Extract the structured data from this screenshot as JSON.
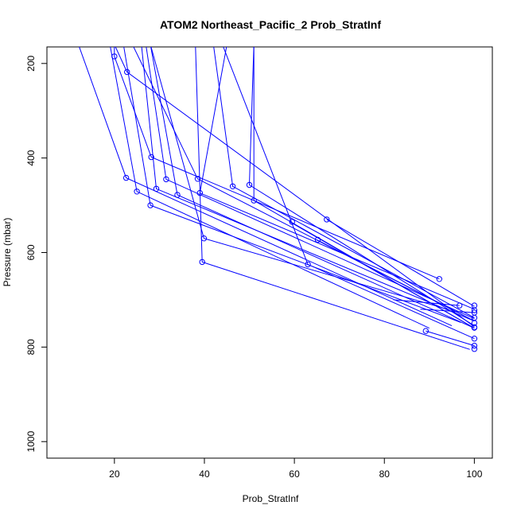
{
  "chart_data": {
    "type": "line",
    "title": "ATOM2 Northeast_Pacific_2 Prob_StratInf",
    "xlabel": "Prob_StratInf",
    "ylabel": "Pressure (mbar)",
    "xlim": [
      5,
      104
    ],
    "ylim": [
      1035,
      165
    ],
    "y_reversed": true,
    "xticks": [
      20,
      40,
      60,
      80,
      100
    ],
    "yticks": [
      200,
      400,
      600,
      800,
      1000
    ],
    "grid": false,
    "legend": "none",
    "colors": {
      "series": "#0000ff",
      "axes": "#000000"
    },
    "series": [
      {
        "segments": [
          [
            [
              12,
              160
            ],
            [
              22.6,
              442
            ],
            [
              95,
              755
            ]
          ]
        ],
        "points": [
          [
            22.6,
            442
          ],
          [
            100,
            759
          ]
        ]
      },
      {
        "segments": [
          [
            [
              19,
              160
            ],
            [
              25,
              471
            ],
            [
              90,
              760
            ]
          ]
        ],
        "points": [
          [
            25,
            471
          ]
        ]
      },
      {
        "segments": [
          [
            [
              22,
              160
            ],
            [
              28,
              500
            ],
            [
              97,
              748
            ]
          ]
        ],
        "points": [
          [
            28,
            500
          ],
          [
            100,
            749
          ]
        ]
      },
      {
        "segments": [
          [
            [
              26,
              160
            ],
            [
              29.3,
              465
            ],
            [
              100,
              745
            ]
          ]
        ],
        "points": [
          [
            29.3,
            465
          ]
        ]
      },
      {
        "segments": [
          [
            [
              27,
              160
            ],
            [
              31.5,
              445
            ],
            [
              100,
              740
            ]
          ]
        ],
        "points": [
          [
            31.5,
            445
          ],
          [
            100,
            738
          ]
        ]
      },
      {
        "segments": [
          [
            [
              28,
              160
            ],
            [
              34,
              478
            ],
            [
              100,
              760
            ]
          ]
        ],
        "points": [
          [
            34,
            478
          ],
          [
            100,
            758
          ]
        ]
      },
      {
        "segments": [
          [
            [
              38,
              160
            ],
            [
              39.5,
              620
            ],
            [
              99,
              805
            ]
          ]
        ],
        "points": [
          [
            39.5,
            620
          ],
          [
            100,
            804
          ]
        ]
      },
      {
        "segments": [
          [
            [
              28,
              160
            ],
            [
              39.9,
              570
            ],
            [
              94,
              720
            ]
          ]
        ],
        "points": [
          [
            39.9,
            570
          ]
        ]
      },
      {
        "segments": [
          [
            [
              24,
              160
            ],
            [
              38.5,
              444
            ],
            [
              100,
              745
            ]
          ]
        ],
        "points": [
          [
            38.5,
            444
          ]
        ]
      },
      {
        "segments": [
          [
            [
              45,
              160
            ],
            [
              39,
              474
            ],
            [
              100,
              720
            ]
          ]
        ],
        "points": [
          [
            39,
            474
          ],
          [
            100,
            722
          ]
        ]
      },
      {
        "segments": [
          [
            [
              42,
              160
            ],
            [
              46.3,
              460
            ],
            [
              100,
              738
            ]
          ]
        ],
        "points": [
          [
            46.3,
            460
          ]
        ]
      },
      {
        "segments": [
          [
            [
              51,
              160
            ],
            [
              50,
              457
            ],
            [
              100,
              755
            ]
          ]
        ],
        "points": [
          [
            50,
            457
          ]
        ]
      },
      {
        "segments": [
          [
            [
              51,
              165
            ],
            [
              51,
              490
            ],
            [
              100,
              760
            ]
          ]
        ],
        "points": [
          [
            51,
            490
          ]
        ]
      },
      {
        "segments": [
          [
            [
              20,
              160
            ],
            [
              20,
              185
            ],
            [
              28.2,
              398
            ],
            [
              92.2,
              656
            ]
          ]
        ],
        "points": [
          [
            20,
            185
          ],
          [
            28.2,
            398
          ],
          [
            92.2,
            656
          ]
        ]
      },
      {
        "segments": [
          [
            [
              20,
              160
            ],
            [
              22.8,
              218
            ],
            [
              100,
              757
            ]
          ]
        ],
        "points": [
          [
            22.8,
            218
          ]
        ]
      },
      {
        "segments": [
          [
            [
              44,
              160
            ],
            [
              63,
              625
            ],
            [
              100,
              782
            ]
          ]
        ],
        "points": [
          [
            63,
            625
          ],
          [
            100,
            782
          ]
        ]
      },
      {
        "segments": [
          [
            [
              59,
              535
            ],
            [
              100,
              760
            ]
          ]
        ],
        "points": [
          [
            59.5,
            535
          ]
        ]
      },
      {
        "segments": [
          [
            [
              65,
              573
            ],
            [
              100,
              745
            ]
          ]
        ],
        "points": [
          [
            65.2,
            573
          ]
        ]
      },
      {
        "segments": [
          [
            [
              67.2,
              530
            ],
            [
              100,
              714
            ]
          ]
        ],
        "points": [
          [
            67.2,
            530
          ],
          [
            100,
            712
          ]
        ]
      },
      {
        "segments": [
          [
            [
              89.2,
              766
            ],
            [
              100,
              797
            ]
          ]
        ],
        "points": [
          [
            89.2,
            766
          ],
          [
            100,
            797
          ]
        ]
      },
      {
        "segments": [
          [
            [
              82,
              700
            ],
            [
              96.7,
              712
            ]
          ]
        ],
        "points": [
          [
            96.7,
            712
          ]
        ]
      },
      {
        "segments": [
          [
            [
              88,
              720
            ],
            [
              100,
              727
            ]
          ]
        ],
        "points": [
          [
            100,
            727
          ]
        ]
      }
    ]
  }
}
